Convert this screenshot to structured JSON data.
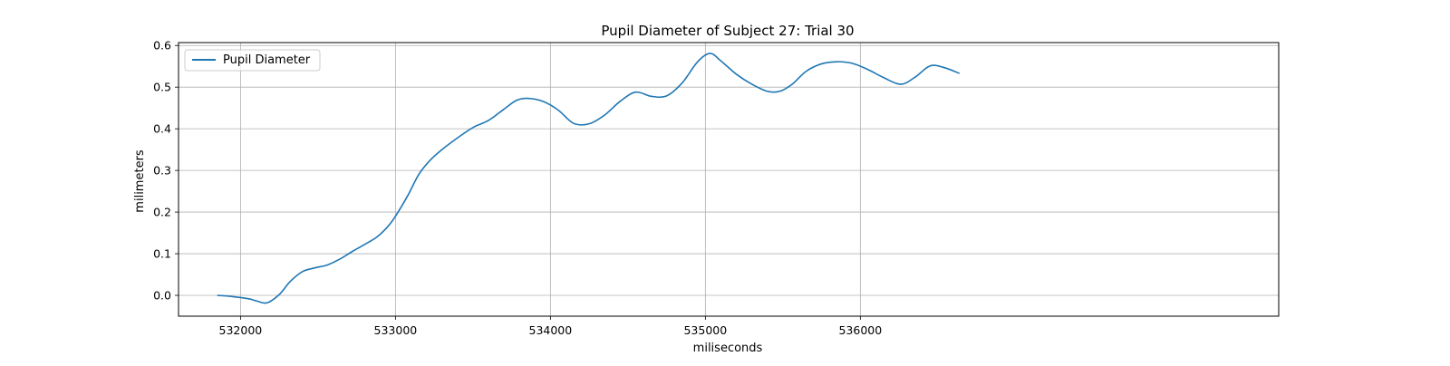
{
  "chart_data": {
    "type": "line",
    "title": "Pupil Diameter of Subject 27: Trial 30",
    "xlabel": "miliseconds",
    "ylabel": "milimeters",
    "xlim": [
      531600,
      538700
    ],
    "ylim": [
      -0.05,
      0.607
    ],
    "xticks": [
      532000,
      533000,
      534000,
      535000,
      536000
    ],
    "xtick_labels": [
      "532000",
      "533000",
      "534000",
      "535000",
      "536000"
    ],
    "yticks": [
      0.0,
      0.1,
      0.2,
      0.3,
      0.4,
      0.5,
      0.6
    ],
    "ytick_labels": [
      "0.0",
      "0.1",
      "0.2",
      "0.3",
      "0.4",
      "0.5",
      "0.6"
    ],
    "grid": true,
    "legend_position": "top-left",
    "series": [
      {
        "name": "Pupil Diameter",
        "color": "#1f77b4",
        "x": [
          531850,
          531950,
          532050,
          532100,
          532170,
          532250,
          532320,
          532400,
          532480,
          532560,
          532640,
          532720,
          532800,
          532880,
          532950,
          533000,
          533080,
          533150,
          533220,
          533300,
          533400,
          533500,
          533600,
          533700,
          533780,
          533850,
          533950,
          534050,
          534150,
          534250,
          534350,
          534450,
          534550,
          534650,
          534750,
          534850,
          534950,
          535030,
          535100,
          535200,
          535300,
          535400,
          535480,
          535560,
          535650,
          535750,
          535850,
          535950,
          536050,
          536150,
          536260,
          536350,
          536450,
          536540,
          536640
        ],
        "y": [
          0.0,
          -0.003,
          -0.008,
          -0.013,
          -0.018,
          0.002,
          0.033,
          0.057,
          0.066,
          0.073,
          0.087,
          0.105,
          0.122,
          0.14,
          0.165,
          0.19,
          0.24,
          0.29,
          0.323,
          0.35,
          0.378,
          0.403,
          0.42,
          0.447,
          0.468,
          0.473,
          0.466,
          0.445,
          0.413,
          0.412,
          0.433,
          0.466,
          0.488,
          0.478,
          0.479,
          0.51,
          0.561,
          0.581,
          0.563,
          0.531,
          0.507,
          0.49,
          0.49,
          0.507,
          0.538,
          0.556,
          0.561,
          0.557,
          0.542,
          0.523,
          0.507,
          0.523,
          0.551,
          0.547,
          0.533
        ]
      }
    ]
  }
}
